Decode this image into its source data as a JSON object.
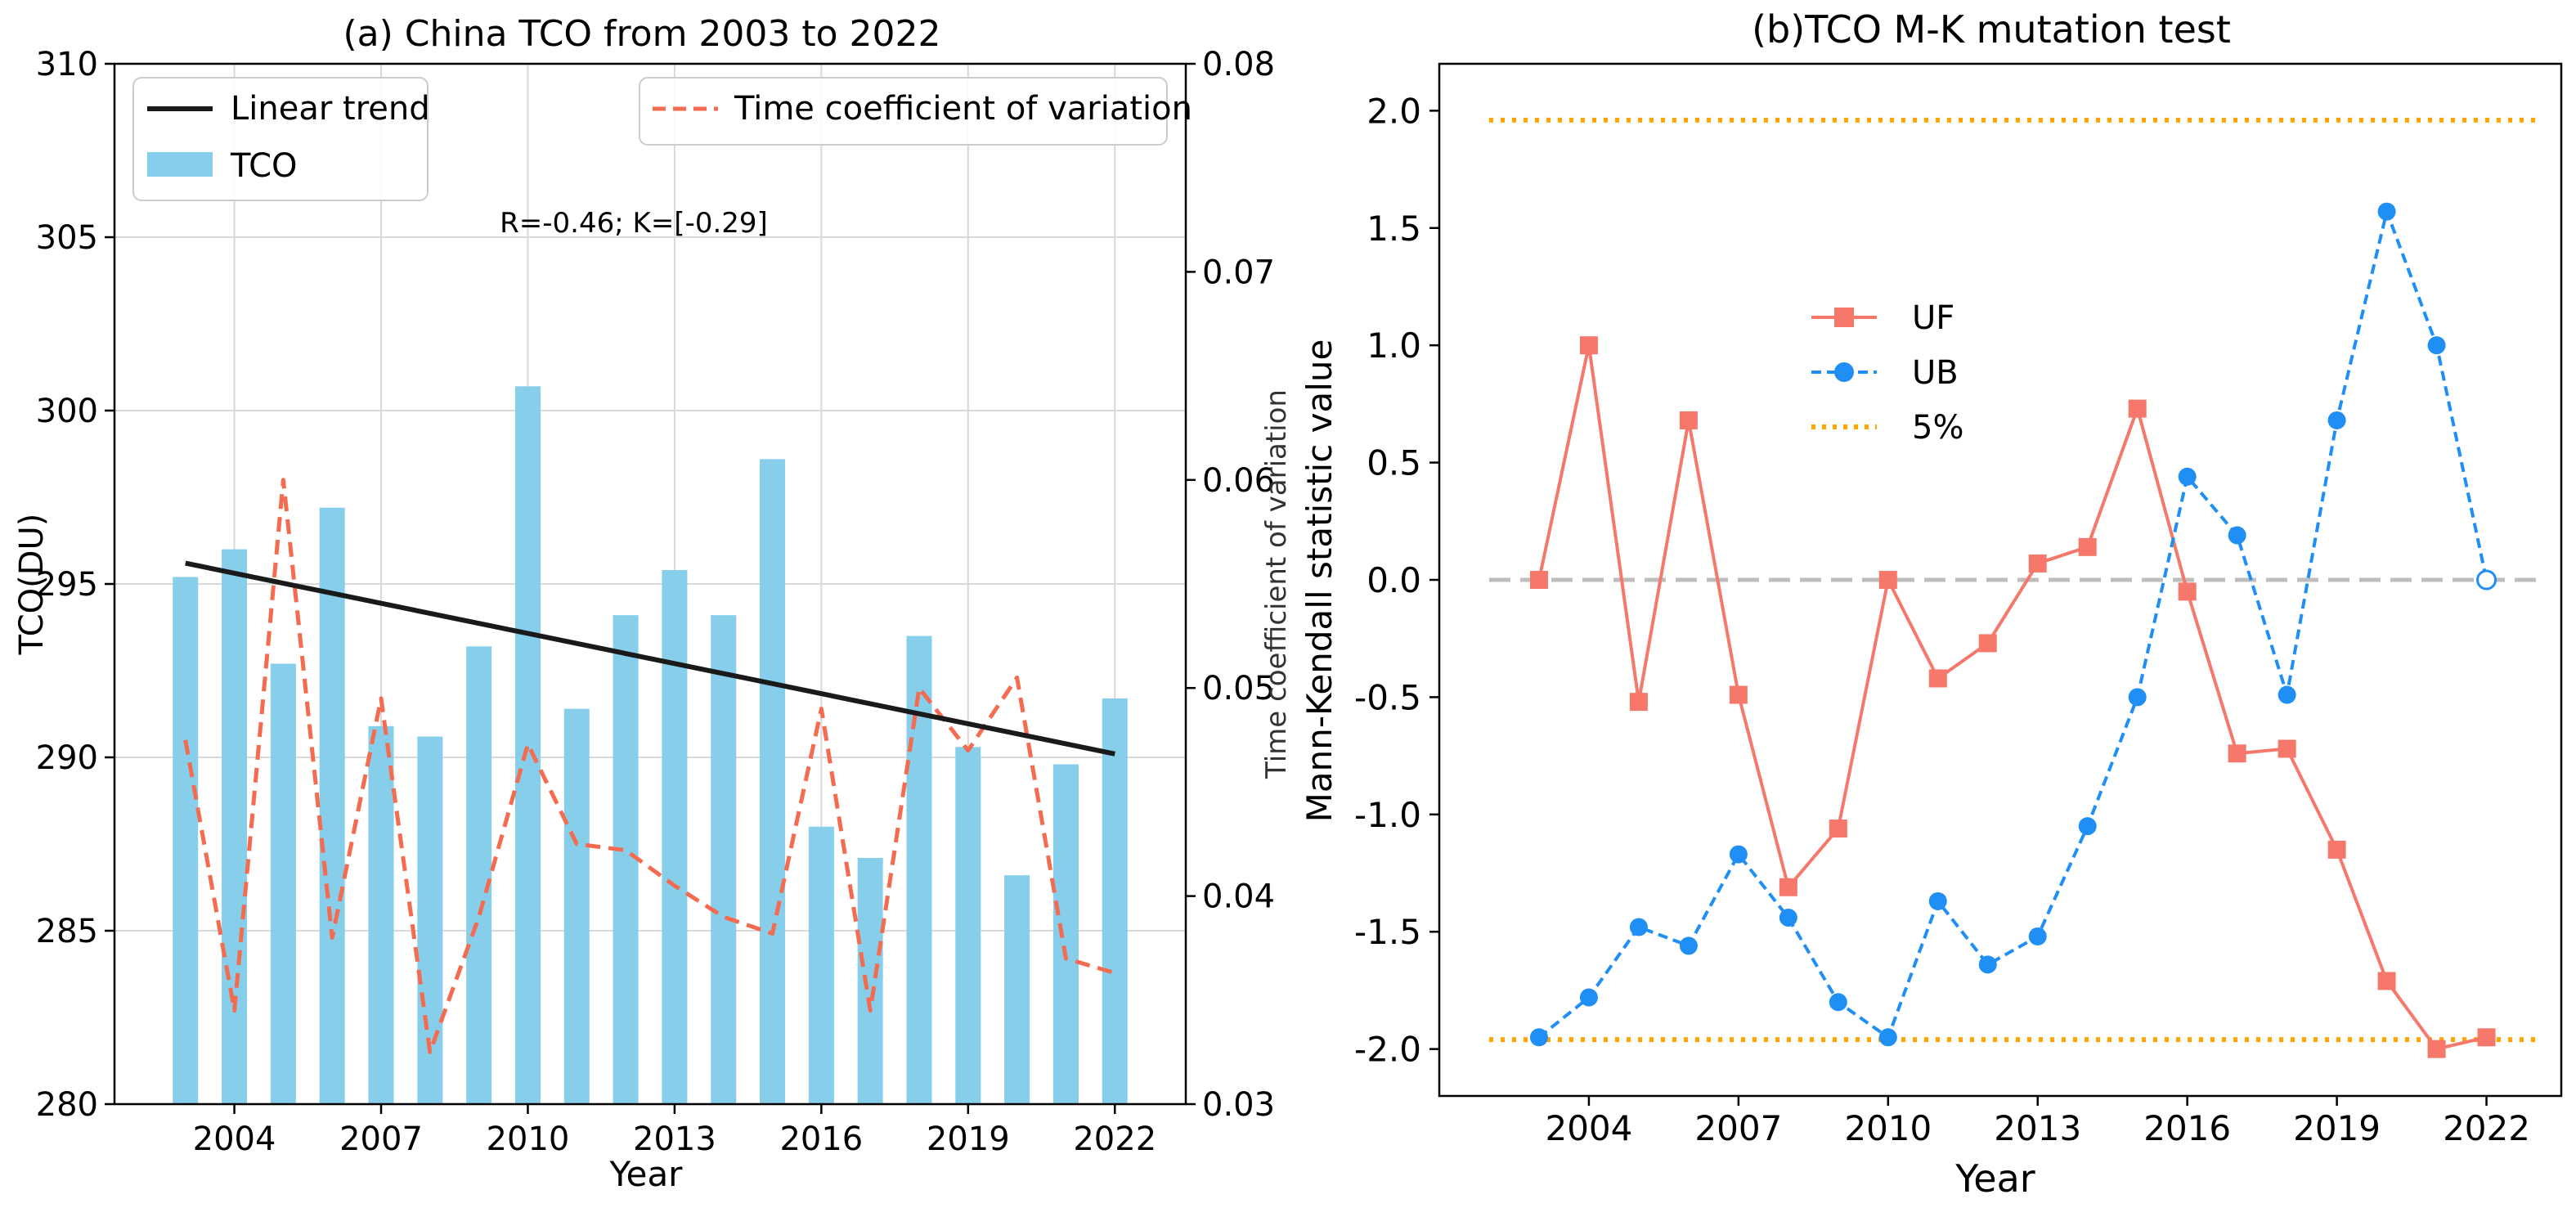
{
  "chart_data": [
    {
      "panel": "a",
      "type": "bar",
      "title": "(a) China TCO from 2003 to 2022",
      "xlabel": "Year",
      "ylabel": "TCO(DU)",
      "ylabel_right": "Time coefficient of variation",
      "ylim": [
        280,
        310
      ],
      "ylim_right": [
        0.03,
        0.08
      ],
      "yticks": [
        "280",
        "285",
        "290",
        "295",
        "300",
        "305",
        "310"
      ],
      "yticks_right": [
        "0.03",
        "0.04",
        "0.05",
        "0.06",
        "0.07",
        "0.08"
      ],
      "xticks": [
        "2004",
        "2007",
        "2010",
        "2013",
        "2016",
        "2019",
        "2022"
      ],
      "annotation": "R=-0.46;  K=[-0.29]",
      "grid": true,
      "colors": {
        "bar": "#87ceeb",
        "trend": "#1a1a1a",
        "cv": "#f46b4f"
      },
      "series": [
        {
          "name": "TCO",
          "kind": "bar",
          "x": [
            2003,
            2004,
            2005,
            2006,
            2007,
            2008,
            2009,
            2010,
            2011,
            2012,
            2013,
            2014,
            2015,
            2016,
            2017,
            2018,
            2019,
            2020,
            2021,
            2022
          ],
          "values": [
            295.2,
            296.0,
            292.7,
            297.2,
            290.9,
            290.6,
            293.2,
            300.7,
            291.4,
            294.1,
            295.4,
            294.1,
            298.6,
            288.0,
            287.1,
            293.5,
            290.3,
            286.6,
            289.8,
            291.7
          ]
        },
        {
          "name": "Linear trend",
          "kind": "line",
          "x": [
            2003,
            2022
          ],
          "values": [
            295.6,
            290.1
          ]
        },
        {
          "name": "Time coefficient of variation",
          "kind": "dashed-line",
          "axis": "right",
          "x": [
            2003,
            2004,
            2005,
            2006,
            2007,
            2008,
            2009,
            2010,
            2011,
            2012,
            2013,
            2014,
            2015,
            2016,
            2017,
            2018,
            2019,
            2020,
            2021,
            2022
          ],
          "values": [
            0.0475,
            0.0345,
            0.06,
            0.038,
            0.0495,
            0.0325,
            0.039,
            0.0473,
            0.0425,
            0.0422,
            0.0405,
            0.039,
            0.0382,
            0.049,
            0.0345,
            0.05,
            0.047,
            0.0505,
            0.037,
            0.0363
          ]
        }
      ],
      "legend": [
        {
          "label": "Linear trend",
          "placement": "top-left"
        },
        {
          "label": "TCO",
          "placement": "top-left"
        },
        {
          "label": "Time coefficient of variation",
          "placement": "top-right"
        }
      ]
    },
    {
      "panel": "b",
      "type": "line",
      "title": "(b)TCO M-K mutation test",
      "xlabel": "Year",
      "ylabel": "Mann-Kendall statistic value",
      "ylim": [
        -2.2,
        2.2
      ],
      "xlim": [
        2001,
        2023.5
      ],
      "yticks": [
        "-2.0",
        "-1.5",
        "-1.0",
        "-0.5",
        "0.0",
        "0.5",
        "1.0",
        "1.5",
        "2.0"
      ],
      "xticks": [
        "2004",
        "2007",
        "2010",
        "2013",
        "2016",
        "2019",
        "2022"
      ],
      "grid": false,
      "colors": {
        "uf": "#f5786b",
        "ub": "#1f8ef5",
        "sig": "#ffa500",
        "zero": "#bdbdbd"
      },
      "reference_lines": [
        1.96,
        -1.96,
        0.0
      ],
      "series": [
        {
          "name": "UF",
          "marker": "square",
          "x": [
            2003,
            2004,
            2005,
            2006,
            2007,
            2008,
            2009,
            2010,
            2011,
            2012,
            2013,
            2014,
            2015,
            2016,
            2017,
            2018,
            2019,
            2020,
            2021,
            2022
          ],
          "values": [
            0.0,
            1.0,
            -0.52,
            0.68,
            -0.49,
            -1.31,
            -1.06,
            0.0,
            -0.42,
            -0.27,
            0.07,
            0.14,
            0.73,
            -0.05,
            -0.74,
            -0.72,
            -1.15,
            -1.71,
            -2.0,
            -1.95
          ]
        },
        {
          "name": "UB",
          "marker": "circle",
          "x": [
            2003,
            2004,
            2005,
            2006,
            2007,
            2008,
            2009,
            2010,
            2011,
            2012,
            2013,
            2014,
            2015,
            2016,
            2017,
            2018,
            2019,
            2020,
            2021,
            2022
          ],
          "values": [
            -1.95,
            -1.78,
            -1.48,
            -1.56,
            -1.17,
            -1.44,
            -1.8,
            -1.95,
            -1.37,
            -1.64,
            -1.52,
            -1.05,
            -0.5,
            0.44,
            0.19,
            -0.49,
            0.68,
            1.57,
            1.0,
            0.0
          ]
        }
      ],
      "legend": [
        {
          "label": "UF",
          "placement": "upper-center"
        },
        {
          "label": "UB",
          "placement": "upper-center"
        },
        {
          "label": "5%",
          "placement": "upper-center"
        }
      ]
    }
  ]
}
